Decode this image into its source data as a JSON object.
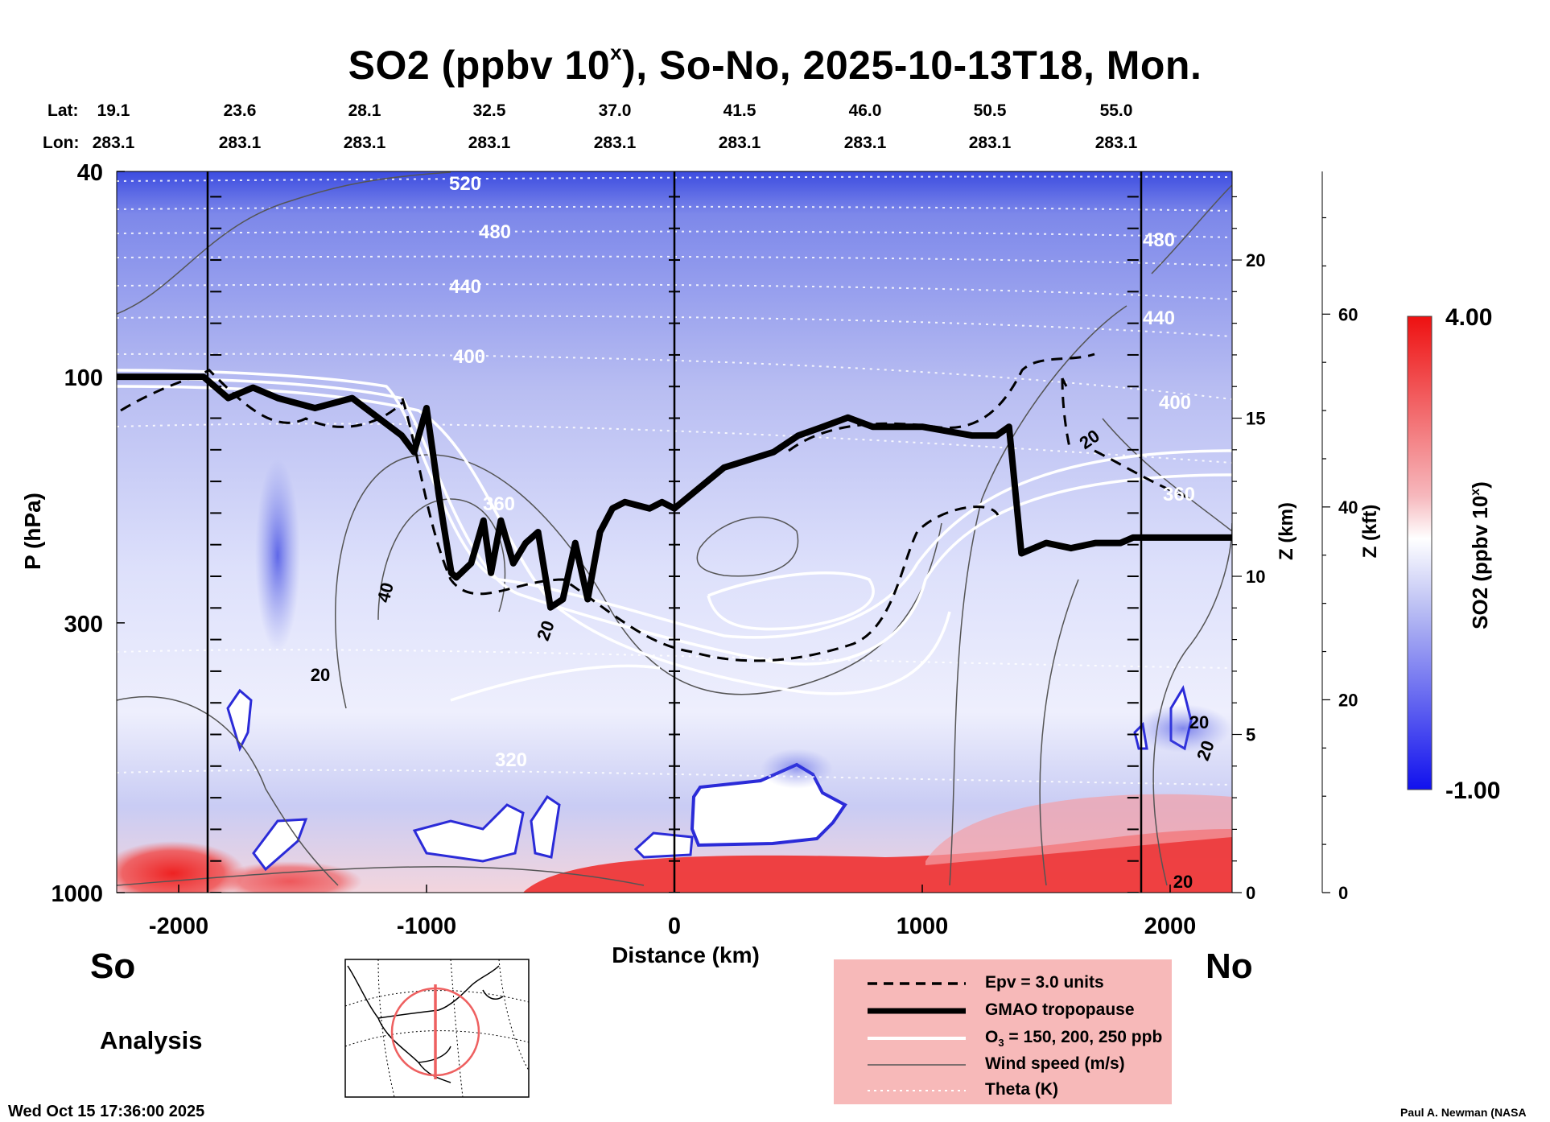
{
  "title": {
    "prefix": "SO2 (ppbv 10",
    "sup": "x",
    "suffix": "), So-No, 2025-10-13T18, Mon."
  },
  "position_rows": {
    "lat_label": "Lat:",
    "lon_label": "Lon:",
    "lat_values": [
      "19.1",
      "23.6",
      "28.1",
      "32.5",
      "37.0",
      "41.5",
      "46.0",
      "50.5",
      "55.0"
    ],
    "lon_values": [
      "283.1",
      "283.1",
      "283.1",
      "283.1",
      "283.1",
      "283.1",
      "283.1",
      "283.1",
      "283.1"
    ]
  },
  "labels": {
    "south": "So",
    "north": "No",
    "analysis": "Analysis",
    "timestamp": "Wed Oct 15 17:36:00 2025",
    "credit": "Paul A. Newman (NASA"
  },
  "legend": {
    "epv": "Epv = 3.0 units",
    "tropopause": "GMAO tropopause",
    "ozone_prefix": "O",
    "ozone_sub": "3",
    "ozone_suffix": " = 150, 200, 250 ppb",
    "wind": "Wind speed (m/s)",
    "theta": "Theta (K)"
  },
  "colorbar": {
    "label_prefix": "SO2 (ppbv 10",
    "label_sup": "x",
    "label_suffix": ")",
    "max_label": "4.00",
    "min_label": "-1.00",
    "colors": {
      "high": "#ee1111",
      "mid": "#ffffff",
      "low": "#1111ee"
    }
  },
  "chart_data": {
    "type": "heatmap",
    "variable": "SO2 (ppbv 10^x) cross-section",
    "x_axis": {
      "label": "Distance (km)",
      "range": [
        -2250,
        2250
      ],
      "ticks": [
        -2000,
        -1000,
        0,
        1000,
        2000
      ],
      "tick_labels": [
        "-2000",
        "-1000",
        "0",
        "1000",
        "2000"
      ],
      "vertical_lines_at": [
        -1850,
        0,
        1850
      ]
    },
    "y_axis_left": {
      "label": "P (hPa)",
      "scale": "log",
      "range_hpa": [
        1000,
        40
      ],
      "tick_values": [
        1000,
        300,
        100,
        40
      ],
      "tick_labels": [
        "1000",
        "300",
        "100",
        "40"
      ]
    },
    "y_axis_right_km": {
      "label": "Z (km)",
      "range": [
        0,
        22.8
      ],
      "tick_values": [
        0,
        5,
        10,
        15,
        20
      ],
      "tick_labels": [
        "0",
        "5",
        "10",
        "15",
        "20"
      ]
    },
    "y_axis_right_kft": {
      "label": "Z (kft)",
      "range": [
        0,
        74.8
      ],
      "tick_values": [
        0,
        20,
        40,
        60
      ],
      "tick_labels": [
        "0",
        "20",
        "40",
        "60"
      ]
    },
    "color_scale": {
      "min": -1.0,
      "max": 4.0
    },
    "theta_contours_K": {
      "values": [
        320,
        360,
        400,
        440,
        480,
        520
      ],
      "labels": [
        "320",
        "360",
        "400",
        "440",
        "480",
        "520"
      ]
    },
    "wind_speed_contour_labels": [
      "20",
      "40",
      "20",
      "20",
      "20",
      "20",
      "20"
    ],
    "tropopause_pressure_hpa": {
      "x_km": [
        -2250,
        -1900,
        -1800,
        -1700,
        -1600,
        -1450,
        -1300,
        -1100,
        -1050,
        -1000,
        -950,
        -900,
        -880,
        -820,
        -770,
        -740,
        -700,
        -650,
        -600,
        -550,
        -500,
        -450,
        -400,
        -350,
        -300,
        -250,
        -200,
        -100,
        -50,
        0,
        200,
        400,
        500,
        600,
        700,
        800,
        1000,
        1200,
        1300,
        1350,
        1400,
        1450,
        1500,
        1600,
        1700,
        1800,
        1850,
        2000,
        2250
      ],
      "p_hpa": [
        100,
        100,
        110,
        105,
        110,
        115,
        110,
        130,
        140,
        115,
        170,
        240,
        245,
        230,
        190,
        240,
        190,
        230,
        210,
        200,
        280,
        270,
        210,
        270,
        200,
        180,
        175,
        180,
        175,
        180,
        150,
        140,
        130,
        125,
        120,
        125,
        125,
        130,
        130,
        125,
        220,
        215,
        210,
        215,
        210,
        210,
        205,
        205,
        205
      ]
    }
  }
}
